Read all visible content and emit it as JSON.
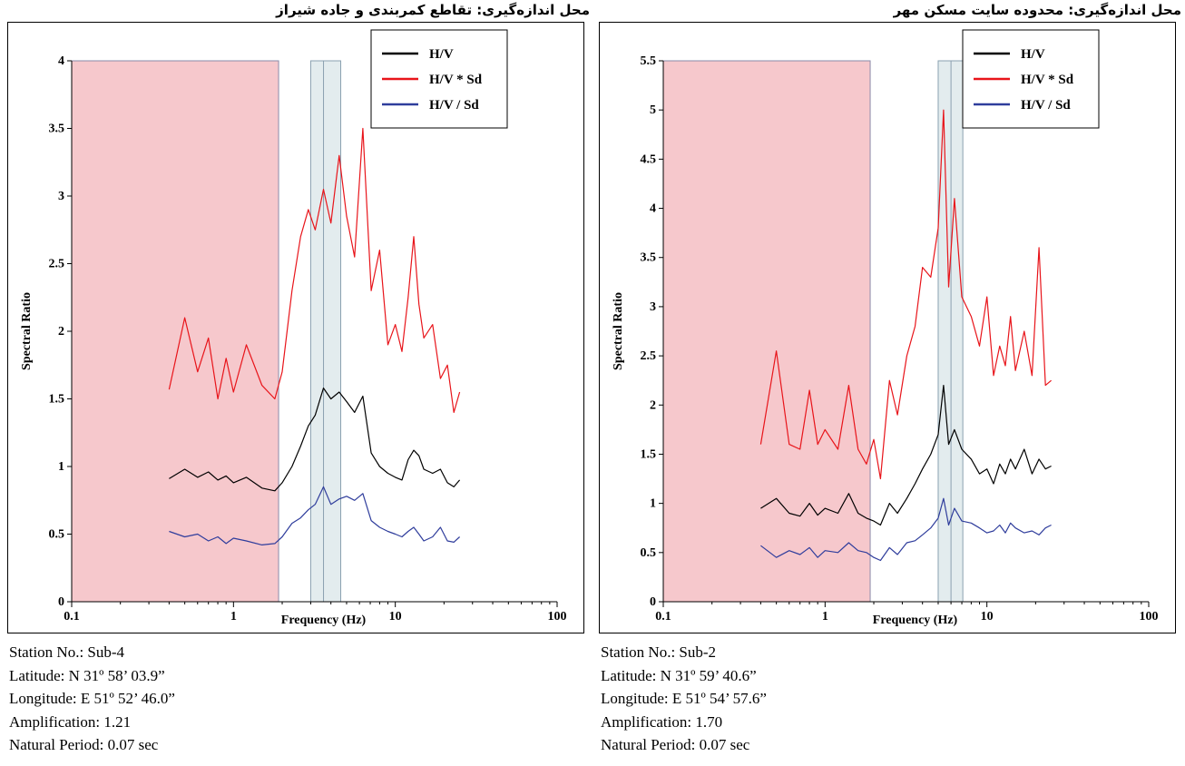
{
  "colors": {
    "hv": "#000000",
    "hv_times_sd": "#e8141a",
    "hv_div_sd": "#2f3d9c",
    "invalid_region": "#f6c8cc",
    "peak_band": "#e3ecee",
    "page_background": "#ffffff"
  },
  "chart_data": [
    {
      "type": "line",
      "panel_title": "محل اندازه‌گیری: تقاطع کمربندی و جاده شیراز",
      "xlabel": "Frequency (Hz)",
      "ylabel": "Spectral Ratio",
      "x_scale": "log",
      "xlim": [
        0.1,
        100
      ],
      "ylim": [
        0,
        4
      ],
      "x_ticks": [
        "0.1",
        "1",
        "10",
        "100"
      ],
      "y_ticks": [
        "0",
        "0.5",
        "1",
        "1.5",
        "2",
        "2.5",
        "3",
        "3.5",
        "4"
      ],
      "grid": false,
      "legend_position": "top-right",
      "legend": [
        "H/V",
        "H/V * Sd",
        "H/V / Sd"
      ],
      "invalid_region_hz": [
        0.1,
        1.9
      ],
      "peak_band_hz": [
        3.0,
        4.6
      ],
      "peak_band_center_hz": 3.6,
      "x": [
        0.4,
        0.5,
        0.6,
        0.7,
        0.8,
        0.9,
        1.0,
        1.2,
        1.5,
        1.8,
        2.0,
        2.3,
        2.6,
        2.9,
        3.2,
        3.6,
        4.0,
        4.5,
        5.0,
        5.6,
        6.3,
        7.1,
        8.0,
        9.0,
        10,
        11,
        12,
        13,
        14,
        15,
        17,
        19,
        21,
        23,
        25
      ],
      "series": [
        {
          "name": "H/V",
          "values": [
            0.91,
            0.98,
            0.92,
            0.96,
            0.9,
            0.93,
            0.88,
            0.92,
            0.84,
            0.82,
            0.88,
            1.0,
            1.15,
            1.3,
            1.38,
            1.58,
            1.5,
            1.55,
            1.48,
            1.4,
            1.52,
            1.1,
            1.0,
            0.95,
            0.92,
            0.9,
            1.05,
            1.12,
            1.08,
            0.98,
            0.95,
            0.98,
            0.88,
            0.85,
            0.9
          ]
        },
        {
          "name": "H/V * Sd",
          "values": [
            1.57,
            2.1,
            1.7,
            1.95,
            1.5,
            1.8,
            1.55,
            1.9,
            1.6,
            1.5,
            1.7,
            2.3,
            2.7,
            2.9,
            2.75,
            3.05,
            2.8,
            3.3,
            2.85,
            2.55,
            3.5,
            2.3,
            2.6,
            1.9,
            2.05,
            1.85,
            2.25,
            2.7,
            2.2,
            1.95,
            2.05,
            1.65,
            1.75,
            1.4,
            1.55
          ]
        },
        {
          "name": "H/V / Sd",
          "values": [
            0.52,
            0.48,
            0.5,
            0.45,
            0.48,
            0.43,
            0.47,
            0.45,
            0.42,
            0.43,
            0.48,
            0.58,
            0.62,
            0.68,
            0.72,
            0.85,
            0.72,
            0.76,
            0.78,
            0.75,
            0.8,
            0.6,
            0.55,
            0.52,
            0.5,
            0.48,
            0.52,
            0.55,
            0.5,
            0.45,
            0.48,
            0.55,
            0.45,
            0.44,
            0.48
          ]
        }
      ],
      "station": {
        "station_no": "Station No.: Sub-4",
        "latitude": "Latitude: N 31º 58’ 03.9”",
        "longitude": "Longitude: E 51º 52’ 46.0”",
        "amplification": "Amplification: 1.21",
        "natural_period": "Natural Period: 0.07 sec"
      }
    },
    {
      "type": "line",
      "panel_title": "محل اندازه‌گیری: محدوده سایت مسکن مهر",
      "xlabel": "Frequency (Hz)",
      "ylabel": "Spectral Ratio",
      "x_scale": "log",
      "xlim": [
        0.1,
        100
      ],
      "ylim": [
        0,
        5.5
      ],
      "x_ticks": [
        "0.1",
        "1",
        "10",
        "100"
      ],
      "y_ticks": [
        "0",
        "0.5",
        "1",
        "1.5",
        "2",
        "2.5",
        "3",
        "3.5",
        "4",
        "4.5",
        "5",
        "5.5"
      ],
      "grid": false,
      "legend_position": "top-right",
      "legend": [
        "H/V",
        "H/V * Sd",
        "H/V / Sd"
      ],
      "invalid_region_hz": [
        0.1,
        1.9
      ],
      "peak_band_hz": [
        5.0,
        7.1
      ],
      "peak_band_center_hz": 6.0,
      "x": [
        0.4,
        0.5,
        0.6,
        0.7,
        0.8,
        0.9,
        1.0,
        1.2,
        1.4,
        1.6,
        1.8,
        2.0,
        2.2,
        2.5,
        2.8,
        3.2,
        3.6,
        4.0,
        4.5,
        5.0,
        5.4,
        5.8,
        6.3,
        7.0,
        8.0,
        9.0,
        10,
        11,
        12,
        13,
        14,
        15,
        17,
        19,
        21,
        23,
        25
      ],
      "series": [
        {
          "name": "H/V",
          "values": [
            0.95,
            1.05,
            0.9,
            0.87,
            1.0,
            0.88,
            0.95,
            0.9,
            1.1,
            0.9,
            0.85,
            0.82,
            0.78,
            1.0,
            0.9,
            1.05,
            1.2,
            1.35,
            1.5,
            1.7,
            2.2,
            1.6,
            1.75,
            1.55,
            1.45,
            1.3,
            1.35,
            1.2,
            1.4,
            1.3,
            1.45,
            1.35,
            1.55,
            1.3,
            1.45,
            1.35,
            1.38
          ]
        },
        {
          "name": "H/V * Sd",
          "values": [
            1.6,
            2.55,
            1.6,
            1.55,
            2.15,
            1.6,
            1.75,
            1.55,
            2.2,
            1.55,
            1.4,
            1.65,
            1.25,
            2.25,
            1.9,
            2.5,
            2.8,
            3.4,
            3.3,
            3.8,
            5.0,
            3.2,
            4.1,
            3.1,
            2.9,
            2.6,
            3.1,
            2.3,
            2.6,
            2.4,
            2.9,
            2.35,
            2.75,
            2.3,
            3.6,
            2.2,
            2.25
          ]
        },
        {
          "name": "H/V / Sd",
          "values": [
            0.57,
            0.45,
            0.52,
            0.48,
            0.55,
            0.45,
            0.52,
            0.5,
            0.6,
            0.52,
            0.5,
            0.45,
            0.42,
            0.55,
            0.48,
            0.6,
            0.62,
            0.68,
            0.75,
            0.85,
            1.05,
            0.78,
            0.95,
            0.82,
            0.8,
            0.75,
            0.7,
            0.72,
            0.78,
            0.7,
            0.8,
            0.75,
            0.7,
            0.72,
            0.68,
            0.75,
            0.78
          ]
        }
      ],
      "station": {
        "station_no": "Station No.: Sub-2",
        "latitude": "Latitude: N 31º 59’ 40.6”",
        "longitude": "Longitude: E 51º 54’ 57.6”",
        "amplification": "Amplification: 1.70",
        "natural_period": "Natural Period: 0.07 sec"
      }
    }
  ]
}
